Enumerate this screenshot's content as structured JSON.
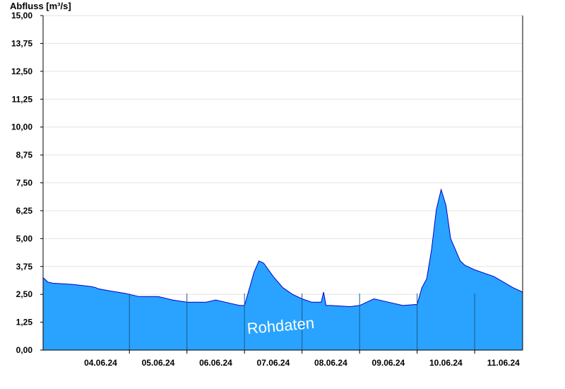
{
  "chart_data": {
    "type": "area",
    "ylabel": "Abfluss [m³/s]",
    "ylim": [
      0,
      15
    ],
    "yticks": [
      "0,00",
      "1,25",
      "2,50",
      "3,75",
      "5,00",
      "6,25",
      "7,50",
      "8,75",
      "10,00",
      "11,25",
      "12,50",
      "13,75",
      "15,00"
    ],
    "xlim": [
      "2024-06-03T12:00",
      "2024-06-11T20:00"
    ],
    "xticks": [
      "04.06.24",
      "05.06.24",
      "06.06.24",
      "07.06.24",
      "08.06.24",
      "09.06.24",
      "10.06.24",
      "11.06.24"
    ],
    "grid": true,
    "annotation": "Rohdaten",
    "fill_color": "#29a3ff",
    "line_color": "#0000cc",
    "series": [
      {
        "x": [
          "2024-06-03T12:00",
          "2024-06-03T14:00",
          "2024-06-03T16:00",
          "2024-06-04T00:00",
          "2024-06-04T08:00",
          "2024-06-04T10:00",
          "2024-06-04T11:00",
          "2024-06-04T16:00",
          "2024-06-04T22:00",
          "2024-06-05T00:00",
          "2024-06-05T04:00",
          "2024-06-05T12:00",
          "2024-06-05T18:00",
          "2024-06-06T00:00",
          "2024-06-06T08:00",
          "2024-06-06T12:00",
          "2024-06-06T18:00",
          "2024-06-06T22:00",
          "2024-06-07T00:00",
          "2024-06-07T04:00",
          "2024-06-07T06:00",
          "2024-06-07T08:00",
          "2024-06-07T12:00",
          "2024-06-07T16:00",
          "2024-06-07T20:00",
          "2024-06-08T00:00",
          "2024-06-08T04:00",
          "2024-06-08T08:00",
          "2024-06-08T09:00",
          "2024-06-08T10:00",
          "2024-06-08T12:00",
          "2024-06-08T20:00",
          "2024-06-09T00:00",
          "2024-06-09T06:00",
          "2024-06-09T12:00",
          "2024-06-09T18:00",
          "2024-06-10T00:00",
          "2024-06-10T02:00",
          "2024-06-10T04:00",
          "2024-06-10T06:00",
          "2024-06-10T08:00",
          "2024-06-10T10:00",
          "2024-06-10T12:00",
          "2024-06-10T14:00",
          "2024-06-10T16:00",
          "2024-06-10T18:00",
          "2024-06-10T20:00",
          "2024-06-11T00:00",
          "2024-06-11T08:00",
          "2024-06-11T16:00",
          "2024-06-11T20:00"
        ],
        "y": [
          3.25,
          3.05,
          3.0,
          2.95,
          2.85,
          2.8,
          2.75,
          2.65,
          2.55,
          2.5,
          2.4,
          2.4,
          2.25,
          2.15,
          2.15,
          2.25,
          2.1,
          2.0,
          2.0,
          3.5,
          4.0,
          3.9,
          3.3,
          2.8,
          2.5,
          2.3,
          2.15,
          2.15,
          2.6,
          2.0,
          2.0,
          1.95,
          2.0,
          2.3,
          2.15,
          2.0,
          2.05,
          2.8,
          3.2,
          4.5,
          6.3,
          7.2,
          6.5,
          5.0,
          4.5,
          4.0,
          3.8,
          3.6,
          3.3,
          2.8,
          2.6
        ]
      }
    ]
  }
}
